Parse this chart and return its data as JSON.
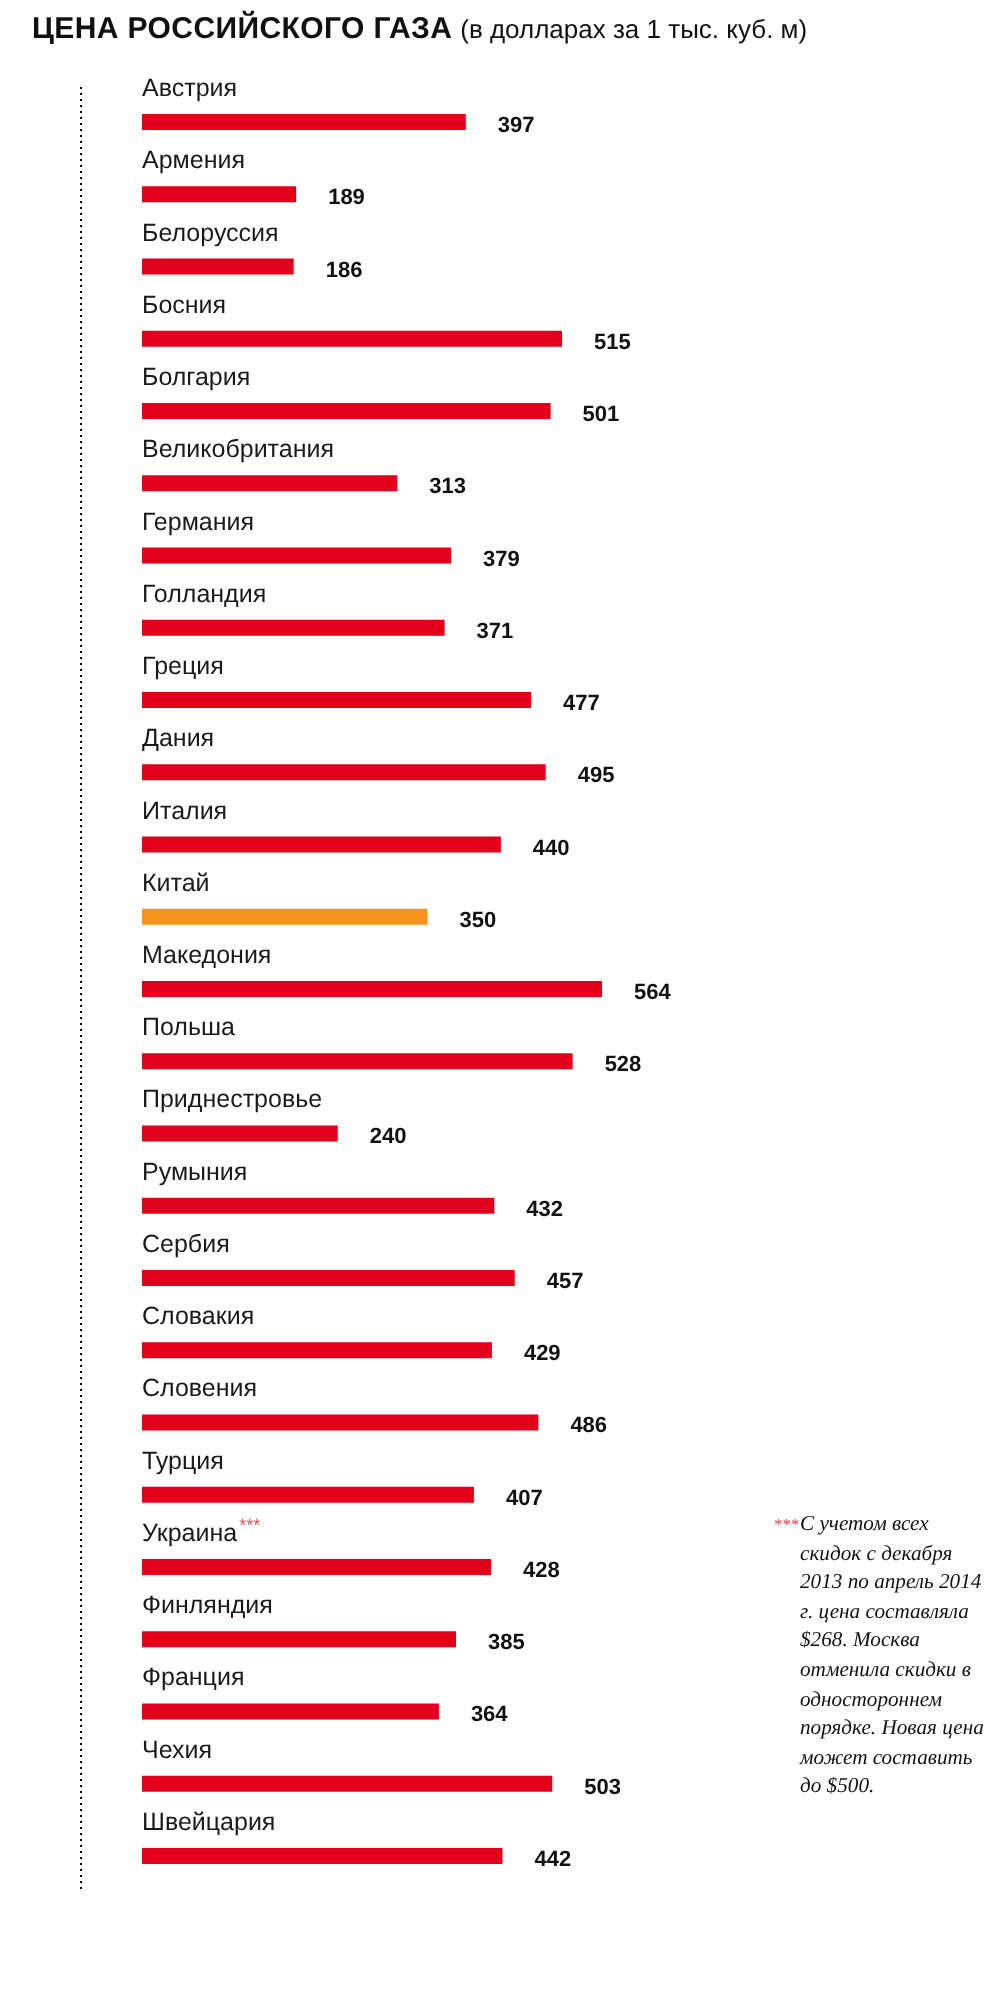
{
  "chart_data": {
    "type": "bar",
    "orientation": "horizontal",
    "title": "ЦЕНА РОССИЙСКОГО ГАЗА",
    "subtitle": "(в долларах за 1 тыс. куб. м)",
    "categories": [
      "Австрия",
      "Армения",
      "Белоруссия",
      "Босния",
      "Болгария",
      "Великобритания",
      "Германия",
      "Голландия",
      "Греция",
      "Дания",
      "Италия",
      "Китай",
      "Македония",
      "Польша",
      "Приднестровье",
      "Румыния",
      "Сербия",
      "Словакия",
      "Словения",
      "Турция",
      "Украина",
      "Финляндия",
      "Франция",
      "Чехия",
      "Швейцария"
    ],
    "values": [
      397,
      189,
      186,
      515,
      501,
      313,
      379,
      371,
      477,
      495,
      440,
      350,
      564,
      528,
      240,
      432,
      457,
      429,
      486,
      407,
      428,
      385,
      364,
      503,
      442
    ],
    "colors": [
      "#e2001a",
      "#e2001a",
      "#e2001a",
      "#e2001a",
      "#e2001a",
      "#e2001a",
      "#e2001a",
      "#e2001a",
      "#e2001a",
      "#e2001a",
      "#e2001a",
      "#f7941d",
      "#e2001a",
      "#e2001a",
      "#e2001a",
      "#e2001a",
      "#e2001a",
      "#e2001a",
      "#e2001a",
      "#e2001a",
      "#e2001a",
      "#e2001a",
      "#e2001a",
      "#e2001a",
      "#e2001a"
    ],
    "data_labels": true,
    "annotations": [
      {
        "text": "***",
        "y": "Украина"
      },
      "***С учетом всех скидок с декабря 2013 по апрель 2014 г. цена составляла $268. Москва отменила скидки в одностороннем порядке. Новая цена может составить до $500."
    ]
  }
}
